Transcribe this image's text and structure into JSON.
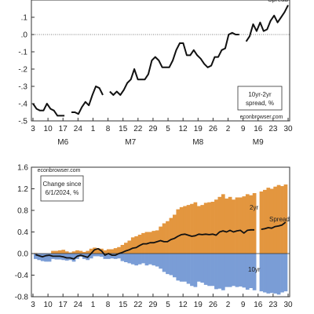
{
  "chart_data": [
    {
      "type": "line",
      "series_label_lines": [
        "10yr-2yr",
        "spread, %"
      ],
      "watermark": "econbrowser.com",
      "corner_label": "Spread",
      "ylim": [
        -0.5,
        0.2
      ],
      "y_ticks": [
        0.1,
        0.0,
        -0.1,
        -0.2,
        -0.3,
        -0.4,
        -0.5
      ],
      "y_tick_labels": [
        ".1",
        ".0",
        "-.1",
        "-.2",
        "-.3",
        "-.4",
        "-.5"
      ],
      "x_day_labels": [
        "3",
        "10",
        "17",
        "24",
        "1",
        "8",
        "15",
        "22",
        "29",
        "5",
        "12",
        "19",
        "26",
        "2",
        "9",
        "16",
        "23",
        "30"
      ],
      "x_month_labels": [
        "M6",
        "M7",
        "M8",
        "M9"
      ],
      "values": [
        -0.4,
        -0.43,
        -0.44,
        -0.44,
        -0.4,
        -0.43,
        -0.44,
        -0.47,
        -0.47,
        -0.47,
        null,
        -0.45,
        -0.45,
        -0.46,
        -0.42,
        -0.39,
        -0.41,
        -0.35,
        -0.3,
        -0.31,
        -0.35,
        null,
        -0.33,
        -0.35,
        -0.33,
        -0.35,
        -0.32,
        -0.28,
        -0.26,
        -0.2,
        -0.26,
        -0.26,
        -0.26,
        -0.23,
        -0.15,
        -0.13,
        -0.15,
        -0.19,
        -0.19,
        -0.19,
        -0.15,
        -0.09,
        -0.05,
        -0.05,
        -0.12,
        -0.12,
        -0.09,
        -0.12,
        -0.14,
        -0.17,
        -0.19,
        -0.18,
        -0.13,
        -0.13,
        -0.09,
        -0.08,
        0.0,
        0.01,
        0.0,
        0.0,
        null,
        -0.04,
        -0.01,
        0.06,
        0.02,
        0.07,
        0.02,
        0.03,
        0.08,
        0.11,
        0.07,
        0.1,
        0.13,
        0.17
      ]
    },
    {
      "type": "bar",
      "stacked": true,
      "watermark": "econbrowser.com",
      "note_lines": [
        "Change since",
        "6/1/2024, %"
      ],
      "ylim": [
        -0.8,
        1.6
      ],
      "y_ticks": [
        1.6,
        1.2,
        0.8,
        0.4,
        0.0,
        -0.4,
        -0.8
      ],
      "y_tick_labels": [
        "1.6",
        "1.2",
        "0.8",
        "0.4",
        "0.0",
        "-0.4",
        "-0.8"
      ],
      "x_day_labels": [
        "3",
        "10",
        "17",
        "24",
        "1",
        "8",
        "15",
        "22",
        "29",
        "5",
        "12",
        "19",
        "26",
        "2",
        "9",
        "16",
        "23",
        "30"
      ],
      "series": [
        {
          "name": "2yr",
          "color": "#E3963F",
          "values": [
            0.01,
            0.0,
            -0.01,
            -0.02,
            -0.03,
            0.05,
            0.05,
            0.06,
            0.07,
            0.04,
            0.02,
            0.04,
            0.06,
            0.05,
            0.03,
            0.05,
            0.09,
            0.11,
            0.1,
            0.09,
            0.06,
            0.08,
            0.08,
            0.1,
            0.12,
            0.16,
            0.2,
            0.24,
            0.3,
            0.32,
            0.35,
            0.38,
            0.4,
            0.4,
            0.42,
            0.43,
            0.5,
            0.56,
            0.6,
            0.66,
            0.72,
            0.82,
            0.86,
            0.88,
            0.9,
            0.92,
            0.95,
            0.88,
            0.9,
            0.94,
            0.95,
            0.96,
            1.0,
            1.05,
            1.1,
            1.02,
            1.05,
            1.0,
            1.04,
            1.04,
            1.06,
            1.1,
            1.08,
            1.12,
            1.15,
            1.18,
            1.22,
            1.2,
            1.24,
            1.27,
            1.25,
            1.28
          ]
        },
        {
          "name": "10yr",
          "color": "#7A9DD6",
          "values": [
            -0.1,
            -0.12,
            -0.14,
            -0.15,
            -0.15,
            -0.1,
            -0.11,
            -0.11,
            -0.12,
            -0.13,
            -0.12,
            -0.15,
            -0.1,
            -0.06,
            -0.1,
            -0.12,
            -0.09,
            -0.05,
            -0.05,
            -0.06,
            -0.1,
            -0.1,
            -0.09,
            -0.1,
            -0.09,
            -0.14,
            -0.16,
            -0.18,
            -0.2,
            -0.22,
            -0.2,
            -0.18,
            -0.22,
            -0.2,
            -0.22,
            -0.24,
            -0.28,
            -0.34,
            -0.38,
            -0.4,
            -0.44,
            -0.5,
            -0.52,
            -0.52,
            -0.56,
            -0.6,
            -0.62,
            -0.52,
            -0.54,
            -0.58,
            -0.6,
            -0.6,
            -0.66,
            -0.65,
            -0.68,
            -0.62,
            -0.62,
            -0.6,
            -0.62,
            -0.61,
            -0.63,
            -0.67,
            -0.64,
            -0.68,
            -0.7,
            -0.72,
            -0.74,
            -0.73,
            -0.74,
            -0.76,
            -0.72,
            -0.7
          ]
        },
        {
          "name": "Spread",
          "type": "line",
          "color": "#111111",
          "values": [
            -0.02,
            -0.04,
            -0.06,
            -0.04,
            -0.03,
            -0.05,
            -0.05,
            -0.05,
            -0.06,
            -0.08,
            -0.08,
            -0.1,
            -0.05,
            -0.03,
            -0.05,
            -0.07,
            0.0,
            0.07,
            0.09,
            0.05,
            -0.03,
            0.0,
            -0.03,
            -0.03,
            0.0,
            0.02,
            0.05,
            0.07,
            0.1,
            0.11,
            0.15,
            0.18,
            0.18,
            0.2,
            0.2,
            0.22,
            0.24,
            0.22,
            0.22,
            0.26,
            0.28,
            0.32,
            0.35,
            0.36,
            0.34,
            0.32,
            0.33,
            0.36,
            0.35,
            0.36,
            0.35,
            0.36,
            0.34,
            0.4,
            0.42,
            0.4,
            0.43,
            0.4,
            0.42,
            0.43,
            0.38,
            0.43,
            0.44,
            0.44,
            0.45,
            0.46,
            0.48,
            0.47,
            0.5,
            0.51,
            0.53,
            0.58
          ]
        }
      ]
    }
  ]
}
